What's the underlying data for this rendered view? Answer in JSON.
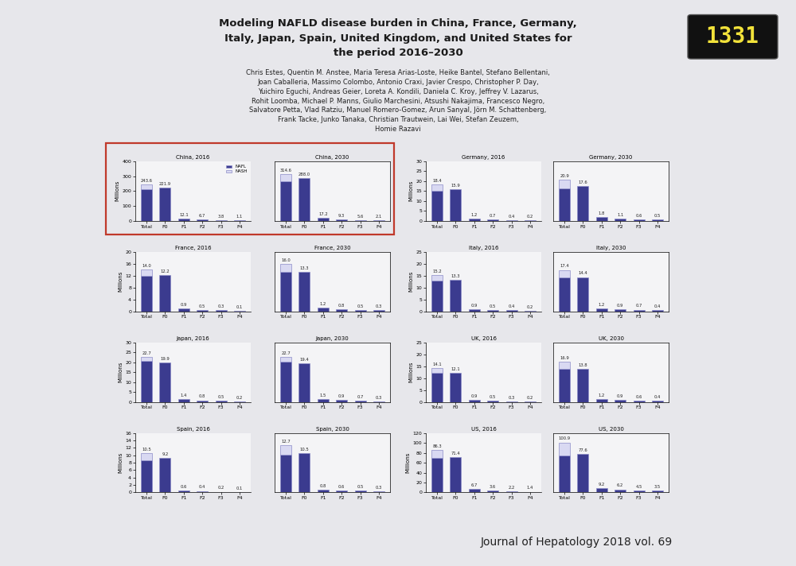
{
  "header": {
    "timer": "1331",
    "title_lines": [
      "Modeling NAFLD disease burden in China, France, Germany,",
      "Italy, Japan, Spain, United Kingdom, and United States for",
      "the period 2016–2030"
    ],
    "authors": [
      "Chris Estes, Quentin M. Anstee, Maria Teresa Arias-Loste, Heike Bantel, Stefano Bellentani,",
      "Joan Caballeria, Massimo Colombo, Antonio Craxi, Javier Crespo, Christopher P. Day,",
      "Yuichiro Eguchi, Andreas Geier, Loreta A. Kondili, Daniela C. Kroy, Jeffrey V. Lazarus,",
      "Rohit Loomba, Michael P. Manns, Giulio Marchesini, Atsushi Nakajima, Francesco Negro,",
      "Salvatore Petta, Vlad Ratziu, Manuel Romero-Gomez, Arun Sanyal, Jörn M. Schattenberg,",
      "Frank Tacke, Junko Tanaka, Christian Trautwein, Lai Wei, Stefan Zeuzem,",
      "Homie Razavi"
    ]
  },
  "footer": "Journal of Hepatology 2018 vol. 69",
  "chart_data": [
    {
      "type": "bar",
      "title": "China, 2016",
      "ylabel": "Millions",
      "categories": [
        "Total",
        "F0",
        "F1",
        "F2",
        "F3",
        "F4"
      ],
      "stacked": true,
      "data_labels": true,
      "legend": "upper right",
      "series": [
        {
          "name": "NAFL",
          "color": "#3b3b8f",
          "values": [
            211.3,
            null,
            null,
            null,
            null,
            null
          ]
        },
        {
          "name": "NASH",
          "color": "#d9d9f2",
          "values": [
            32.3,
            null,
            null,
            null,
            null,
            null
          ]
        },
        {
          "color": "#3b3b8f",
          "values": [
            null,
            221.9,
            12.1,
            6.7,
            3.8,
            1.1
          ]
        }
      ],
      "totals": [
        243.6,
        221.9,
        12.1,
        6.7,
        3.8,
        1.1
      ],
      "ylim": [
        0,
        400
      ],
      "yticks": [
        0,
        100,
        200,
        300,
        400
      ]
    },
    {
      "type": "bar",
      "title": "China, 2030",
      "categories": [
        "Total",
        "F0",
        "F1",
        "F2",
        "F3",
        "F4"
      ],
      "stacked": true,
      "data_labels": true,
      "tick_labels": "x",
      "series": [
        {
          "name": "NAFL",
          "color": "#3b3b8f",
          "values": [
            266.3,
            null,
            null,
            null,
            null,
            null
          ]
        },
        {
          "name": "NASH",
          "color": "#d9d9f2",
          "values": [
            48.3,
            null,
            null,
            null,
            null,
            null
          ]
        },
        {
          "color": "#3b3b8f",
          "values": [
            null,
            288.0,
            17.2,
            9.3,
            5.6,
            2.1
          ]
        }
      ],
      "totals": [
        314.6,
        288.0,
        17.2,
        9.3,
        5.6,
        2.1
      ],
      "ylim": [
        0,
        400
      ]
    },
    {
      "type": "bar",
      "title": "Germany, 2016",
      "ylabel": "Millions",
      "categories": [
        "Total",
        "F0",
        "F1",
        "F2",
        "F3",
        "F4"
      ],
      "stacked": true,
      "data_labels": true,
      "series": [
        {
          "name": "NAFL",
          "color": "#3b3b8f",
          "values": [
            15.1,
            null,
            null,
            null,
            null,
            null
          ]
        },
        {
          "name": "NASH",
          "color": "#d9d9f2",
          "values": [
            3.3,
            null,
            null,
            null,
            null,
            null
          ]
        },
        {
          "color": "#3b3b8f",
          "values": [
            null,
            15.9,
            1.2,
            0.7,
            0.4,
            0.2
          ]
        }
      ],
      "totals": [
        18.4,
        15.9,
        1.2,
        0.7,
        0.4,
        0.2
      ],
      "ylim": [
        0,
        30
      ],
      "yticks": [
        0,
        5,
        10,
        15,
        20,
        25,
        30
      ]
    },
    {
      "type": "bar",
      "title": "Germany, 2030",
      "categories": [
        "Total",
        "F0",
        "F1",
        "F2",
        "F3",
        "F4"
      ],
      "stacked": true,
      "data_labels": true,
      "tick_labels": "x",
      "series": [
        {
          "name": "NAFL",
          "color": "#3b3b8f",
          "values": [
            16.5,
            null,
            null,
            null,
            null,
            null
          ]
        },
        {
          "name": "NASH",
          "color": "#d9d9f2",
          "values": [
            4.4,
            null,
            null,
            null,
            null,
            null
          ]
        },
        {
          "color": "#3b3b8f",
          "values": [
            null,
            17.6,
            1.8,
            1.1,
            0.6,
            0.5
          ]
        }
      ],
      "totals": [
        20.9,
        17.6,
        1.8,
        1.1,
        0.6,
        0.5
      ],
      "ylim": [
        0,
        30
      ]
    },
    {
      "type": "bar",
      "title": "France, 2016",
      "ylabel": "Millions",
      "categories": [
        "Total",
        "F0",
        "F1",
        "F2",
        "F3",
        "F4"
      ],
      "stacked": true,
      "data_labels": true,
      "series": [
        {
          "name": "NAFL",
          "color": "#3b3b8f",
          "values": [
            12.0,
            null,
            null,
            null,
            null,
            null
          ]
        },
        {
          "name": "NASH",
          "color": "#d9d9f2",
          "values": [
            2.0,
            null,
            null,
            null,
            null,
            null
          ]
        },
        {
          "color": "#3b3b8f",
          "values": [
            null,
            12.2,
            0.9,
            0.5,
            0.3,
            0.1
          ]
        }
      ],
      "totals": [
        14.0,
        12.2,
        0.9,
        0.5,
        0.3,
        0.1
      ],
      "ylim": [
        0,
        20
      ],
      "yticks": [
        0,
        4,
        8,
        12,
        16,
        20
      ]
    },
    {
      "type": "bar",
      "title": "France, 2030",
      "categories": [
        "Total",
        "F0",
        "F1",
        "F2",
        "F3",
        "F4"
      ],
      "stacked": true,
      "data_labels": true,
      "tick_labels": "x",
      "series": [
        {
          "name": "NAFL",
          "color": "#3b3b8f",
          "values": [
            13.4,
            null,
            null,
            null,
            null,
            null
          ]
        },
        {
          "name": "NASH",
          "color": "#d9d9f2",
          "values": [
            2.6,
            null,
            null,
            null,
            null,
            null
          ]
        },
        {
          "color": "#3b3b8f",
          "values": [
            null,
            13.3,
            1.2,
            0.8,
            0.5,
            0.3
          ]
        }
      ],
      "totals": [
        16.0,
        13.3,
        1.2,
        0.8,
        0.5,
        0.3
      ],
      "ylim": [
        0,
        20
      ]
    },
    {
      "type": "bar",
      "title": "Italy, 2016",
      "ylabel": "Millions",
      "categories": [
        "Total",
        "F0",
        "F1",
        "F2",
        "F3",
        "F4"
      ],
      "stacked": true,
      "data_labels": true,
      "series": [
        {
          "name": "NAFL",
          "color": "#3b3b8f",
          "values": [
            12.9,
            null,
            null,
            null,
            null,
            null
          ]
        },
        {
          "name": "NASH",
          "color": "#d9d9f2",
          "values": [
            2.3,
            null,
            null,
            null,
            null,
            null
          ]
        },
        {
          "color": "#3b3b8f",
          "values": [
            null,
            13.3,
            0.9,
            0.5,
            0.4,
            0.2
          ]
        }
      ],
      "totals": [
        15.2,
        13.3,
        0.9,
        0.5,
        0.4,
        0.2
      ],
      "ylim": [
        0,
        25
      ],
      "yticks": [
        0,
        5,
        10,
        15,
        20,
        25
      ]
    },
    {
      "type": "bar",
      "title": "Italy, 2030",
      "categories": [
        "Total",
        "F0",
        "F1",
        "F2",
        "F3",
        "F4"
      ],
      "stacked": true,
      "data_labels": true,
      "tick_labels": "x",
      "series": [
        {
          "name": "NAFL",
          "color": "#3b3b8f",
          "values": [
            14.1,
            null,
            null,
            null,
            null,
            null
          ]
        },
        {
          "name": "NASH",
          "color": "#d9d9f2",
          "values": [
            3.3,
            null,
            null,
            null,
            null,
            null
          ]
        },
        {
          "color": "#3b3b8f",
          "values": [
            null,
            14.4,
            1.2,
            0.9,
            0.7,
            0.4
          ]
        }
      ],
      "totals": [
        17.4,
        14.4,
        1.2,
        0.9,
        0.7,
        0.4
      ],
      "ylim": [
        0,
        25
      ]
    },
    {
      "type": "bar",
      "title": "Japan, 2016",
      "ylabel": "Millions",
      "categories": [
        "Total",
        "F0",
        "F1",
        "F2",
        "F3",
        "F4"
      ],
      "stacked": true,
      "data_labels": true,
      "series": [
        {
          "name": "NAFL",
          "color": "#3b3b8f",
          "values": [
            20.7,
            null,
            null,
            null,
            null,
            null
          ]
        },
        {
          "name": "NASH",
          "color": "#d9d9f2",
          "values": [
            2.0,
            null,
            null,
            null,
            null,
            null
          ]
        },
        {
          "color": "#3b3b8f",
          "values": [
            null,
            19.9,
            1.4,
            0.8,
            0.5,
            0.2
          ]
        }
      ],
      "totals": [
        22.7,
        19.9,
        1.4,
        0.8,
        0.5,
        0.2
      ],
      "ylim": [
        0,
        30
      ],
      "yticks": [
        0,
        5,
        10,
        15,
        20,
        25,
        30
      ]
    },
    {
      "type": "bar",
      "title": "Japan, 2030",
      "categories": [
        "Total",
        "F0",
        "F1",
        "F2",
        "F3",
        "F4"
      ],
      "stacked": true,
      "data_labels": true,
      "tick_labels": "x",
      "series": [
        {
          "name": "NAFL",
          "color": "#3b3b8f",
          "values": [
            20.3,
            null,
            null,
            null,
            null,
            null
          ]
        },
        {
          "name": "NASH",
          "color": "#d9d9f2",
          "values": [
            2.4,
            null,
            null,
            null,
            null,
            null
          ]
        },
        {
          "color": "#3b3b8f",
          "values": [
            null,
            19.4,
            1.5,
            0.9,
            0.7,
            0.3
          ]
        }
      ],
      "totals": [
        22.7,
        19.4,
        1.5,
        0.9,
        0.7,
        0.3
      ],
      "ylim": [
        0,
        30
      ]
    },
    {
      "type": "bar",
      "title": "UK, 2016",
      "ylabel": "Millions",
      "categories": [
        "Total",
        "F0",
        "F1",
        "F2",
        "F3",
        "F4"
      ],
      "stacked": true,
      "data_labels": true,
      "series": [
        {
          "name": "NAFL",
          "color": "#3b3b8f",
          "values": [
            12.1,
            null,
            null,
            null,
            null,
            null
          ]
        },
        {
          "name": "NASH",
          "color": "#d9d9f2",
          "values": [
            2.0,
            null,
            null,
            null,
            null,
            null
          ]
        },
        {
          "color": "#3b3b8f",
          "values": [
            null,
            12.1,
            0.9,
            0.5,
            0.3,
            0.2
          ]
        }
      ],
      "totals": [
        14.1,
        12.1,
        0.9,
        0.5,
        0.3,
        0.2
      ],
      "ylim": [
        0,
        25
      ],
      "yticks": [
        0,
        5,
        10,
        15,
        20,
        25
      ]
    },
    {
      "type": "bar",
      "title": "UK, 2030",
      "categories": [
        "Total",
        "F0",
        "F1",
        "F2",
        "F3",
        "F4"
      ],
      "stacked": true,
      "data_labels": true,
      "tick_labels": "x",
      "series": [
        {
          "name": "NAFL",
          "color": "#3b3b8f",
          "values": [
            13.8,
            null,
            null,
            null,
            null,
            null
          ]
        },
        {
          "name": "NASH",
          "color": "#d9d9f2",
          "values": [
            3.1,
            null,
            null,
            null,
            null,
            null
          ]
        },
        {
          "color": "#3b3b8f",
          "values": [
            null,
            13.8,
            1.2,
            0.9,
            0.6,
            0.4
          ]
        }
      ],
      "totals": [
        16.9,
        13.8,
        1.2,
        0.9,
        0.6,
        0.4
      ],
      "ylim": [
        0,
        25
      ]
    },
    {
      "type": "bar",
      "title": "Spain, 2016",
      "ylabel": "Millions",
      "categories": [
        "Total",
        "F0",
        "F1",
        "F2",
        "F3",
        "F4"
      ],
      "stacked": true,
      "data_labels": true,
      "series": [
        {
          "name": "NAFL",
          "color": "#3b3b8f",
          "values": [
            8.7,
            null,
            null,
            null,
            null,
            null
          ]
        },
        {
          "name": "NASH",
          "color": "#d9d9f2",
          "values": [
            1.8,
            null,
            null,
            null,
            null,
            null
          ]
        },
        {
          "color": "#3b3b8f",
          "values": [
            null,
            9.2,
            0.6,
            0.4,
            0.2,
            0.1
          ]
        }
      ],
      "totals": [
        10.5,
        9.2,
        0.6,
        0.4,
        0.2,
        0.1
      ],
      "ylim": [
        0,
        16
      ],
      "yticks": [
        0,
        2,
        4,
        6,
        8,
        10,
        12,
        14,
        16
      ]
    },
    {
      "type": "bar",
      "title": "Spain, 2030",
      "categories": [
        "Total",
        "F0",
        "F1",
        "F2",
        "F3",
        "F4"
      ],
      "stacked": true,
      "data_labels": true,
      "tick_labels": "x",
      "series": [
        {
          "name": "NAFL",
          "color": "#3b3b8f",
          "values": [
            10.1,
            null,
            null,
            null,
            null,
            null
          ]
        },
        {
          "name": "NASH",
          "color": "#d9d9f2",
          "values": [
            2.6,
            null,
            null,
            null,
            null,
            null
          ]
        },
        {
          "color": "#3b3b8f",
          "values": [
            null,
            10.5,
            0.8,
            0.6,
            0.5,
            0.3
          ]
        }
      ],
      "totals": [
        12.7,
        10.5,
        0.8,
        0.6,
        0.5,
        0.3
      ],
      "ylim": [
        0,
        16
      ]
    },
    {
      "type": "bar",
      "title": "US, 2016",
      "ylabel": "Millions",
      "categories": [
        "Total",
        "F0",
        "F1",
        "F2",
        "F3",
        "F4"
      ],
      "stacked": true,
      "data_labels": true,
      "series": [
        {
          "name": "NAFL",
          "color": "#3b3b8f",
          "values": [
            69.8,
            null,
            null,
            null,
            null,
            null
          ]
        },
        {
          "name": "NASH",
          "color": "#d9d9f2",
          "values": [
            16.5,
            null,
            null,
            null,
            null,
            null
          ]
        },
        {
          "color": "#3b3b8f",
          "values": [
            null,
            71.4,
            6.7,
            3.6,
            2.2,
            1.4
          ]
        }
      ],
      "totals": [
        86.3,
        71.4,
        6.7,
        3.6,
        2.2,
        1.4
      ],
      "ylim": [
        0,
        120
      ],
      "yticks": [
        0,
        20,
        40,
        60,
        80,
        100,
        120
      ]
    },
    {
      "type": "bar",
      "title": "US, 2030",
      "categories": [
        "Total",
        "F0",
        "F1",
        "F2",
        "F3",
        "F4"
      ],
      "stacked": true,
      "data_labels": true,
      "tick_labels": "x",
      "series": [
        {
          "name": "NAFL",
          "color": "#3b3b8f",
          "values": [
            73.9,
            null,
            null,
            null,
            null,
            null
          ]
        },
        {
          "name": "NASH",
          "color": "#d9d9f2",
          "values": [
            27.0,
            null,
            null,
            null,
            null,
            null
          ]
        },
        {
          "color": "#3b3b8f",
          "values": [
            null,
            77.6,
            9.2,
            6.2,
            4.5,
            3.5
          ]
        }
      ],
      "totals": [
        100.9,
        77.6,
        9.2,
        6.2,
        4.5,
        3.5
      ],
      "ylim": [
        0,
        120
      ]
    }
  ]
}
